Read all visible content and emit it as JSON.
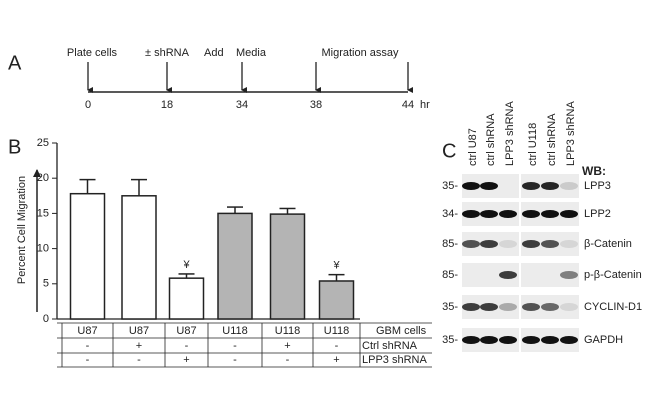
{
  "panel_a": {
    "label": "A",
    "events": [
      "Plate cells",
      "± shRNA",
      "Add",
      "Media",
      "Migration assay"
    ],
    "times": [
      "0",
      "18",
      "34",
      "38",
      "44"
    ],
    "unit": "hr"
  },
  "chart_data": {
    "type": "bar",
    "panel_label": "B",
    "y_label": "Percent Cell Migration",
    "categories": [
      "U87",
      "U87",
      "U87",
      "U118",
      "U118",
      "U118"
    ],
    "values": [
      17.8,
      17.5,
      5.8,
      15.0,
      14.9,
      5.4
    ],
    "errors": [
      2.0,
      2.3,
      0.6,
      0.9,
      0.8,
      0.9
    ],
    "colors": [
      "#ffffff",
      "#ffffff",
      "#ffffff",
      "#b4b4b4",
      "#b4b4b4",
      "#b4b4b4"
    ],
    "annotations": [
      null,
      null,
      "¥",
      null,
      null,
      "¥"
    ],
    "ylim": [
      0,
      25
    ],
    "yticks": [
      0,
      5,
      10,
      15,
      20,
      25
    ],
    "category_row_label": "GBM cells",
    "treatments": [
      {
        "name": "Ctrl shRNA",
        "marks": [
          "-",
          "+",
          "-",
          "-",
          "+",
          "-"
        ]
      },
      {
        "name": "LPP3 shRNA",
        "marks": [
          "-",
          "-",
          "+",
          "-",
          "-",
          "+"
        ]
      }
    ]
  },
  "panel_c": {
    "label": "C",
    "lanes": [
      "ctrl U87",
      "ctrl shRNA",
      "LPP3 shRNA",
      "ctrl U118",
      "ctrl shRNA",
      "LPP3 shRNA"
    ],
    "header": "WB:",
    "rows": [
      {
        "marker": "35-",
        "name": "LPP3"
      },
      {
        "marker": "34-",
        "name": "LPP2"
      },
      {
        "marker": "85-",
        "name": "β-Catenin"
      },
      {
        "marker": "85-",
        "name": "p-β-Catenin"
      },
      {
        "marker": "35-",
        "name": "CYCLIN-D1"
      },
      {
        "marker": "35-",
        "name": "GAPDH"
      }
    ]
  }
}
